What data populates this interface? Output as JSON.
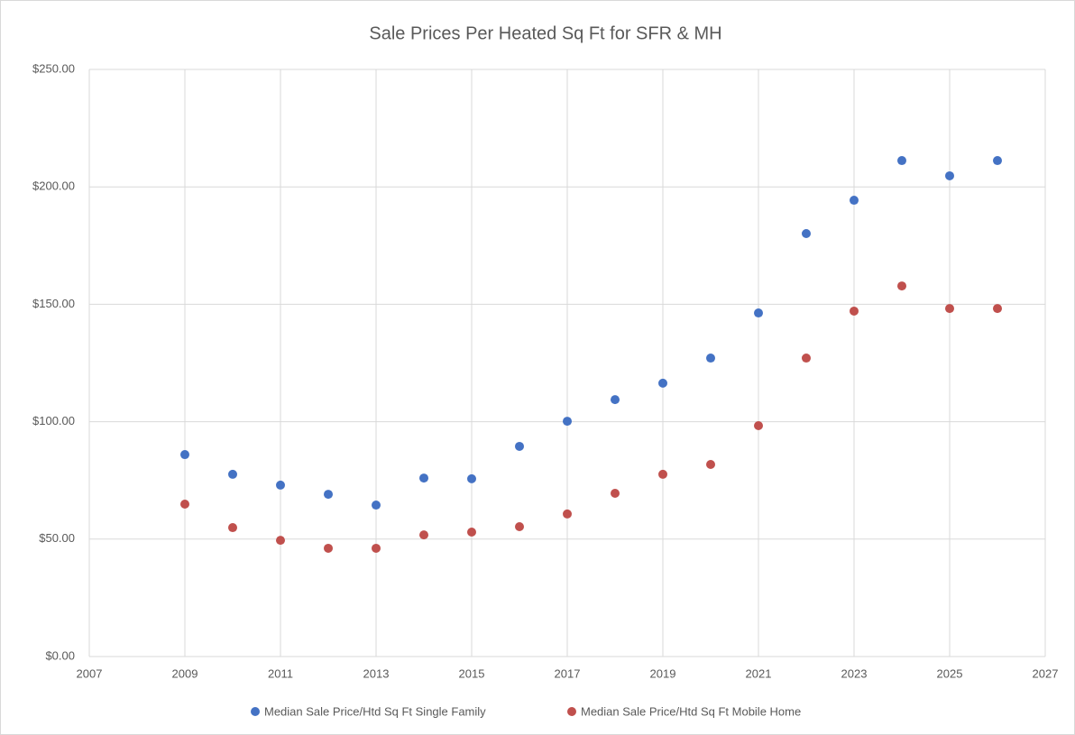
{
  "chart_data": {
    "type": "scatter",
    "title": "Sale Prices Per Heated Sq Ft for SFR & MH",
    "x": [
      2009,
      2010,
      2011,
      2012,
      2013,
      2014,
      2015,
      2016,
      2017,
      2018,
      2019,
      2020,
      2021,
      2022,
      2023,
      2024,
      2025,
      2026
    ],
    "series": [
      {
        "name": "Median Sale Price/Htd Sq Ft Single Family",
        "color": "#4472c4",
        "values": [
          86.0,
          77.6,
          73.0,
          69.1,
          64.5,
          76.0,
          75.7,
          89.5,
          100.2,
          109.4,
          116.4,
          127.1,
          146.3,
          180.1,
          194.3,
          211.2,
          204.7,
          211.2
        ]
      },
      {
        "name": "Median Sale Price/Htd Sq Ft Mobile Home",
        "color": "#c0504d",
        "values": [
          64.9,
          54.9,
          49.5,
          46.1,
          46.1,
          51.8,
          53.0,
          55.3,
          60.7,
          69.5,
          77.6,
          81.8,
          98.3,
          127.1,
          147.1,
          157.8,
          148.2,
          148.2
        ]
      }
    ],
    "xlim": [
      2007,
      2027
    ],
    "xticks": [
      2007,
      2009,
      2011,
      2013,
      2015,
      2017,
      2019,
      2021,
      2023,
      2025,
      2027
    ],
    "ylim": [
      0,
      250
    ],
    "yticks": [
      {
        "value": 0,
        "label": "$0.00"
      },
      {
        "value": 50,
        "label": "$50.00"
      },
      {
        "value": 100,
        "label": "$100.00"
      },
      {
        "value": 150,
        "label": "$150.00"
      },
      {
        "value": 200,
        "label": "$200.00"
      },
      {
        "value": 250,
        "label": "$250.00"
      }
    ],
    "grid": true,
    "legend": "bottom"
  }
}
